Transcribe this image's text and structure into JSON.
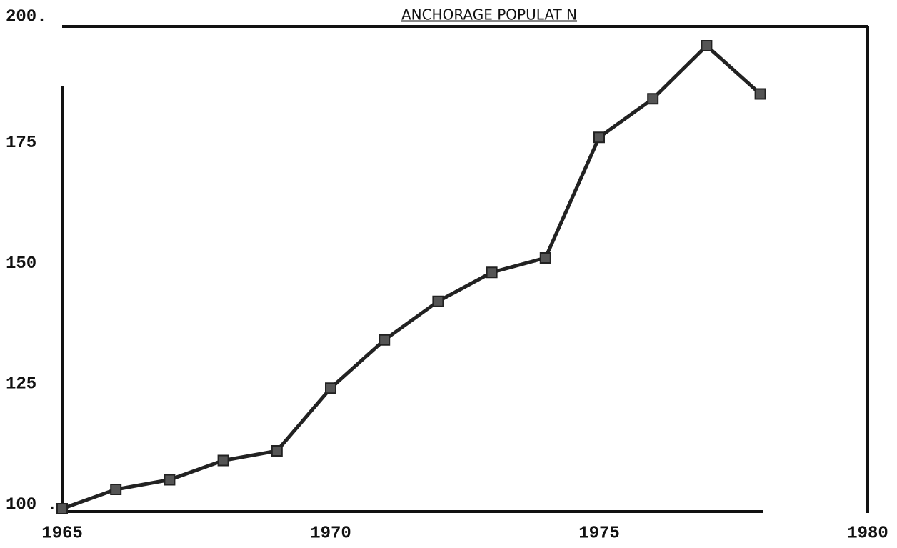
{
  "chart_data": {
    "type": "line",
    "title": "ANCHORAGE POPULAT N",
    "x": [
      1965,
      1966,
      1967,
      1968,
      1969,
      1970,
      1971,
      1972,
      1973,
      1974,
      1975,
      1976,
      1977,
      1978
    ],
    "series": [
      {
        "color": "#222222",
        "values": [
          100,
          104,
          106,
          110,
          112,
          125,
          135,
          143,
          149,
          152,
          177,
          185,
          196,
          186
        ]
      }
    ],
    "xlim": [
      1965,
      1980
    ],
    "xticks": [
      1965,
      1970,
      1975,
      1980
    ],
    "ylim": [
      100,
      200
    ],
    "yticks": [
      {
        "value": 100,
        "label": "100 ."
      },
      125,
      150,
      175,
      {
        "value": 200,
        "label": "200."
      }
    ],
    "grid": false
  }
}
